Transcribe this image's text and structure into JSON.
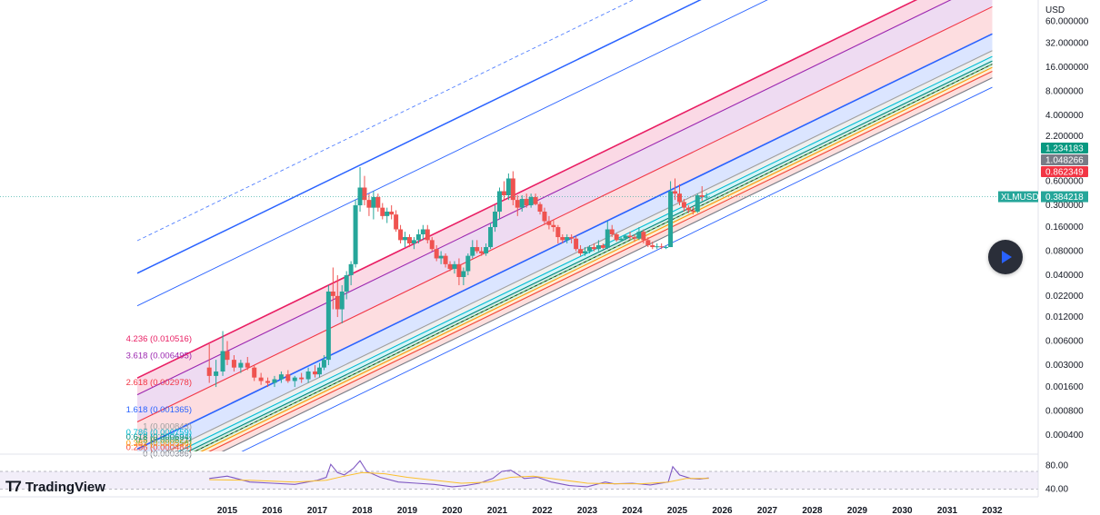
{
  "colors": {
    "up": "#26a69a",
    "down": "#ef5350",
    "rsi": "#7e57c2",
    "rsi_ma": "#fbc02d",
    "fib": {
      "0": "#787b86",
      "0.236": "#f44336",
      "0.382": "#ff9800",
      "0.5": "#4caf50",
      "0.618": "#00897b",
      "0.786": "#00bcd4",
      "1": "#9e9e9e",
      "1.618": "#2962ff",
      "2.618": "#f23645",
      "3.618": "#9c27b0",
      "4.236": "#e91e63"
    }
  },
  "chart_data": [
    {
      "type": "candlestick",
      "symbol": "XLMUSD",
      "currency": "USD",
      "y_scale": "log",
      "ylim": [
        0.00025,
        100
      ],
      "xlim": [
        2014.2,
        2032.6
      ],
      "y_ticks": [
        "60.000000",
        "32.000000",
        "16.000000",
        "8.000000",
        "4.000000",
        "2.200000",
        "0.600000",
        "0.300000",
        "0.160000",
        "0.080000",
        "0.040000",
        "0.022000",
        "0.012000",
        "0.006000",
        "0.003000",
        "0.001600",
        "0.000800",
        "0.000400"
      ],
      "x_ticks": [
        "2015",
        "2016",
        "2017",
        "2018",
        "2019",
        "2020",
        "2021",
        "2022",
        "2023",
        "2024",
        "2025",
        "2026",
        "2027",
        "2028",
        "2029",
        "2030",
        "2031",
        "2032"
      ],
      "price_tags": [
        {
          "label": "1.234183",
          "color": "#089981"
        },
        {
          "label": "1.048266",
          "color": "#787b86"
        },
        {
          "label": "0.862349",
          "color": "#f23645"
        }
      ],
      "last_price": {
        "symbol": "XLMUSD",
        "value": "0.384218"
      },
      "candles": [
        {
          "t": 2014.6,
          "o": 0.0028,
          "h": 0.0055,
          "l": 0.0018,
          "c": 0.0022
        },
        {
          "t": 2014.75,
          "o": 0.0022,
          "h": 0.0035,
          "l": 0.0016,
          "c": 0.0025
        },
        {
          "t": 2014.9,
          "o": 0.0025,
          "h": 0.008,
          "l": 0.0022,
          "c": 0.0045
        },
        {
          "t": 2015.0,
          "o": 0.0045,
          "h": 0.006,
          "l": 0.003,
          "c": 0.0035
        },
        {
          "t": 2015.15,
          "o": 0.0035,
          "h": 0.004,
          "l": 0.0025,
          "c": 0.0028
        },
        {
          "t": 2015.3,
          "o": 0.0028,
          "h": 0.0035,
          "l": 0.0024,
          "c": 0.0032
        },
        {
          "t": 2015.45,
          "o": 0.0032,
          "h": 0.0038,
          "l": 0.0026,
          "c": 0.0028
        },
        {
          "t": 2015.6,
          "o": 0.0028,
          "h": 0.003,
          "l": 0.0019,
          "c": 0.0021
        },
        {
          "t": 2015.75,
          "o": 0.0021,
          "h": 0.0024,
          "l": 0.0017,
          "c": 0.0019
        },
        {
          "t": 2015.9,
          "o": 0.0019,
          "h": 0.0021,
          "l": 0.0016,
          "c": 0.0018
        },
        {
          "t": 2016.05,
          "o": 0.0018,
          "h": 0.0022,
          "l": 0.0016,
          "c": 0.002
        },
        {
          "t": 2016.2,
          "o": 0.002,
          "h": 0.0025,
          "l": 0.0018,
          "c": 0.0023
        },
        {
          "t": 2016.35,
          "o": 0.0023,
          "h": 0.0026,
          "l": 0.0018,
          "c": 0.0019
        },
        {
          "t": 2016.5,
          "o": 0.0019,
          "h": 0.0022,
          "l": 0.0016,
          "c": 0.0021
        },
        {
          "t": 2016.65,
          "o": 0.0021,
          "h": 0.0024,
          "l": 0.0018,
          "c": 0.002
        },
        {
          "t": 2016.8,
          "o": 0.002,
          "h": 0.0028,
          "l": 0.0018,
          "c": 0.0025
        },
        {
          "t": 2016.95,
          "o": 0.0025,
          "h": 0.003,
          "l": 0.0021,
          "c": 0.0023
        },
        {
          "t": 2017.05,
          "o": 0.0023,
          "h": 0.0032,
          "l": 0.0021,
          "c": 0.0028
        },
        {
          "t": 2017.15,
          "o": 0.0028,
          "h": 0.004,
          "l": 0.0026,
          "c": 0.0035
        },
        {
          "t": 2017.25,
          "o": 0.0035,
          "h": 0.03,
          "l": 0.003,
          "c": 0.025
        },
        {
          "t": 2017.35,
          "o": 0.025,
          "h": 0.05,
          "l": 0.015,
          "c": 0.022
        },
        {
          "t": 2017.45,
          "o": 0.022,
          "h": 0.04,
          "l": 0.012,
          "c": 0.015
        },
        {
          "t": 2017.55,
          "o": 0.015,
          "h": 0.03,
          "l": 0.01,
          "c": 0.025
        },
        {
          "t": 2017.65,
          "o": 0.025,
          "h": 0.045,
          "l": 0.02,
          "c": 0.04
        },
        {
          "t": 2017.75,
          "o": 0.04,
          "h": 0.06,
          "l": 0.03,
          "c": 0.055
        },
        {
          "t": 2017.85,
          "o": 0.055,
          "h": 0.35,
          "l": 0.05,
          "c": 0.3
        },
        {
          "t": 2017.95,
          "o": 0.3,
          "h": 0.9,
          "l": 0.25,
          "c": 0.5
        },
        {
          "t": 2018.05,
          "o": 0.5,
          "h": 0.7,
          "l": 0.3,
          "c": 0.35
        },
        {
          "t": 2018.15,
          "o": 0.35,
          "h": 0.42,
          "l": 0.22,
          "c": 0.28
        },
        {
          "t": 2018.25,
          "o": 0.28,
          "h": 0.45,
          "l": 0.2,
          "c": 0.38
        },
        {
          "t": 2018.35,
          "o": 0.38,
          "h": 0.42,
          "l": 0.25,
          "c": 0.28
        },
        {
          "t": 2018.45,
          "o": 0.28,
          "h": 0.32,
          "l": 0.2,
          "c": 0.22
        },
        {
          "t": 2018.55,
          "o": 0.22,
          "h": 0.28,
          "l": 0.18,
          "c": 0.25
        },
        {
          "t": 2018.65,
          "o": 0.25,
          "h": 0.3,
          "l": 0.2,
          "c": 0.23
        },
        {
          "t": 2018.75,
          "o": 0.23,
          "h": 0.26,
          "l": 0.14,
          "c": 0.15
        },
        {
          "t": 2018.85,
          "o": 0.15,
          "h": 0.17,
          "l": 0.1,
          "c": 0.11
        },
        {
          "t": 2018.95,
          "o": 0.11,
          "h": 0.14,
          "l": 0.09,
          "c": 0.12
        },
        {
          "t": 2019.05,
          "o": 0.12,
          "h": 0.13,
          "l": 0.09,
          "c": 0.1
        },
        {
          "t": 2019.15,
          "o": 0.1,
          "h": 0.12,
          "l": 0.085,
          "c": 0.11
        },
        {
          "t": 2019.25,
          "o": 0.11,
          "h": 0.15,
          "l": 0.1,
          "c": 0.13
        },
        {
          "t": 2019.35,
          "o": 0.13,
          "h": 0.17,
          "l": 0.11,
          "c": 0.15
        },
        {
          "t": 2019.45,
          "o": 0.15,
          "h": 0.17,
          "l": 0.1,
          "c": 0.11
        },
        {
          "t": 2019.55,
          "o": 0.11,
          "h": 0.12,
          "l": 0.08,
          "c": 0.085
        },
        {
          "t": 2019.65,
          "o": 0.085,
          "h": 0.095,
          "l": 0.06,
          "c": 0.065
        },
        {
          "t": 2019.75,
          "o": 0.065,
          "h": 0.08,
          "l": 0.055,
          "c": 0.07
        },
        {
          "t": 2019.85,
          "o": 0.07,
          "h": 0.075,
          "l": 0.05,
          "c": 0.055
        },
        {
          "t": 2019.95,
          "o": 0.055,
          "h": 0.06,
          "l": 0.045,
          "c": 0.048
        },
        {
          "t": 2020.05,
          "o": 0.048,
          "h": 0.06,
          "l": 0.042,
          "c": 0.055
        },
        {
          "t": 2020.15,
          "o": 0.055,
          "h": 0.065,
          "l": 0.03,
          "c": 0.038
        },
        {
          "t": 2020.25,
          "o": 0.038,
          "h": 0.05,
          "l": 0.03,
          "c": 0.045
        },
        {
          "t": 2020.35,
          "o": 0.045,
          "h": 0.075,
          "l": 0.04,
          "c": 0.07
        },
        {
          "t": 2020.45,
          "o": 0.07,
          "h": 0.11,
          "l": 0.065,
          "c": 0.09
        },
        {
          "t": 2020.55,
          "o": 0.09,
          "h": 0.11,
          "l": 0.075,
          "c": 0.08
        },
        {
          "t": 2020.65,
          "o": 0.08,
          "h": 0.09,
          "l": 0.07,
          "c": 0.075
        },
        {
          "t": 2020.75,
          "o": 0.075,
          "h": 0.1,
          "l": 0.07,
          "c": 0.09
        },
        {
          "t": 2020.85,
          "o": 0.09,
          "h": 0.18,
          "l": 0.085,
          "c": 0.16
        },
        {
          "t": 2020.95,
          "o": 0.16,
          "h": 0.3,
          "l": 0.14,
          "c": 0.25
        },
        {
          "t": 2021.05,
          "o": 0.25,
          "h": 0.5,
          "l": 0.2,
          "c": 0.45
        },
        {
          "t": 2021.15,
          "o": 0.45,
          "h": 0.6,
          "l": 0.35,
          "c": 0.4
        },
        {
          "t": 2021.25,
          "o": 0.4,
          "h": 0.75,
          "l": 0.35,
          "c": 0.65
        },
        {
          "t": 2021.35,
          "o": 0.65,
          "h": 0.8,
          "l": 0.3,
          "c": 0.35
        },
        {
          "t": 2021.45,
          "o": 0.35,
          "h": 0.4,
          "l": 0.22,
          "c": 0.28
        },
        {
          "t": 2021.55,
          "o": 0.28,
          "h": 0.4,
          "l": 0.25,
          "c": 0.36
        },
        {
          "t": 2021.65,
          "o": 0.36,
          "h": 0.42,
          "l": 0.28,
          "c": 0.3
        },
        {
          "t": 2021.75,
          "o": 0.3,
          "h": 0.42,
          "l": 0.28,
          "c": 0.38
        },
        {
          "t": 2021.85,
          "o": 0.38,
          "h": 0.42,
          "l": 0.3,
          "c": 0.31
        },
        {
          "t": 2021.95,
          "o": 0.31,
          "h": 0.33,
          "l": 0.23,
          "c": 0.25
        },
        {
          "t": 2022.05,
          "o": 0.25,
          "h": 0.28,
          "l": 0.17,
          "c": 0.19
        },
        {
          "t": 2022.15,
          "o": 0.19,
          "h": 0.22,
          "l": 0.15,
          "c": 0.17
        },
        {
          "t": 2022.25,
          "o": 0.17,
          "h": 0.2,
          "l": 0.14,
          "c": 0.16
        },
        {
          "t": 2022.35,
          "o": 0.16,
          "h": 0.17,
          "l": 0.1,
          "c": 0.12
        },
        {
          "t": 2022.45,
          "o": 0.12,
          "h": 0.13,
          "l": 0.1,
          "c": 0.11
        },
        {
          "t": 2022.55,
          "o": 0.11,
          "h": 0.13,
          "l": 0.1,
          "c": 0.12
        },
        {
          "t": 2022.65,
          "o": 0.12,
          "h": 0.13,
          "l": 0.1,
          "c": 0.115
        },
        {
          "t": 2022.75,
          "o": 0.115,
          "h": 0.125,
          "l": 0.08,
          "c": 0.085
        },
        {
          "t": 2022.85,
          "o": 0.085,
          "h": 0.095,
          "l": 0.07,
          "c": 0.075
        },
        {
          "t": 2022.95,
          "o": 0.075,
          "h": 0.09,
          "l": 0.07,
          "c": 0.08
        },
        {
          "t": 2023.05,
          "o": 0.08,
          "h": 0.095,
          "l": 0.075,
          "c": 0.09
        },
        {
          "t": 2023.15,
          "o": 0.09,
          "h": 0.1,
          "l": 0.08,
          "c": 0.085
        },
        {
          "t": 2023.25,
          "o": 0.085,
          "h": 0.11,
          "l": 0.08,
          "c": 0.095
        },
        {
          "t": 2023.35,
          "o": 0.095,
          "h": 0.1,
          "l": 0.085,
          "c": 0.088
        },
        {
          "t": 2023.45,
          "o": 0.088,
          "h": 0.19,
          "l": 0.085,
          "c": 0.15
        },
        {
          "t": 2023.55,
          "o": 0.15,
          "h": 0.17,
          "l": 0.12,
          "c": 0.13
        },
        {
          "t": 2023.65,
          "o": 0.13,
          "h": 0.135,
          "l": 0.105,
          "c": 0.11
        },
        {
          "t": 2023.75,
          "o": 0.11,
          "h": 0.12,
          "l": 0.105,
          "c": 0.115
        },
        {
          "t": 2023.85,
          "o": 0.115,
          "h": 0.13,
          "l": 0.11,
          "c": 0.125
        },
        {
          "t": 2023.95,
          "o": 0.125,
          "h": 0.14,
          "l": 0.11,
          "c": 0.12
        },
        {
          "t": 2024.05,
          "o": 0.12,
          "h": 0.13,
          "l": 0.105,
          "c": 0.115
        },
        {
          "t": 2024.15,
          "o": 0.115,
          "h": 0.16,
          "l": 0.11,
          "c": 0.14
        },
        {
          "t": 2024.25,
          "o": 0.14,
          "h": 0.15,
          "l": 0.1,
          "c": 0.11
        },
        {
          "t": 2024.35,
          "o": 0.11,
          "h": 0.12,
          "l": 0.09,
          "c": 0.095
        },
        {
          "t": 2024.45,
          "o": 0.095,
          "h": 0.105,
          "l": 0.085,
          "c": 0.09
        },
        {
          "t": 2024.55,
          "o": 0.09,
          "h": 0.1,
          "l": 0.085,
          "c": 0.092
        },
        {
          "t": 2024.65,
          "o": 0.092,
          "h": 0.1,
          "l": 0.085,
          "c": 0.09
        },
        {
          "t": 2024.75,
          "o": 0.09,
          "h": 0.095,
          "l": 0.085,
          "c": 0.09
        },
        {
          "t": 2024.85,
          "o": 0.09,
          "h": 0.6,
          "l": 0.09,
          "c": 0.45
        },
        {
          "t": 2024.95,
          "o": 0.45,
          "h": 0.65,
          "l": 0.35,
          "c": 0.42
        },
        {
          "t": 2025.05,
          "o": 0.42,
          "h": 0.55,
          "l": 0.3,
          "c": 0.33
        },
        {
          "t": 2025.15,
          "o": 0.33,
          "h": 0.36,
          "l": 0.25,
          "c": 0.28
        },
        {
          "t": 2025.25,
          "o": 0.28,
          "h": 0.3,
          "l": 0.24,
          "c": 0.26
        },
        {
          "t": 2025.35,
          "o": 0.26,
          "h": 0.29,
          "l": 0.23,
          "c": 0.25
        },
        {
          "t": 2025.45,
          "o": 0.25,
          "h": 0.42,
          "l": 0.24,
          "c": 0.4
        },
        {
          "t": 2025.55,
          "o": 0.4,
          "h": 0.52,
          "l": 0.34,
          "c": 0.38
        },
        {
          "t": 2025.65,
          "o": 0.38,
          "h": 0.43,
          "l": 0.35,
          "c": 0.3842
        }
      ],
      "fib_channel": {
        "base_line": [
          {
            "t": 2014.0,
            "v": 0.000142
          },
          {
            "t": 2030.5,
            "v": 4.6
          }
        ],
        "levels": [
          {
            "level": "0",
            "label": "0 (0.000386)"
          },
          {
            "level": "0.236",
            "label": "0.236 (0.000484)"
          },
          {
            "level": "0.382",
            "label": "0.382 (0.000556)"
          },
          {
            "level": "0.5",
            "label": "0.5 (0.000621)"
          },
          {
            "level": "0.618",
            "label": "0.618 (0.000694)"
          },
          {
            "level": "0.786",
            "label": "0.786 (0.000759)"
          },
          {
            "level": "1",
            "label": "1 (0.000843)"
          },
          {
            "level": "1.618",
            "label": "1.618 (0.001365)"
          },
          {
            "level": "2.618",
            "label": "2.618 (0.002978)"
          },
          {
            "level": "3.618",
            "label": "3.618 (0.006495)"
          },
          {
            "level": "4.236",
            "label": "4.236 (0.010516)"
          }
        ]
      }
    },
    {
      "type": "line",
      "panel": "RSI",
      "ylim": [
        30,
        90
      ],
      "y_ticks": [
        "80.00",
        "40.00"
      ],
      "band": [
        40,
        70
      ],
      "series": [
        {
          "key": "rsi",
          "x": [
            2014.6,
            2015.0,
            2015.5,
            2016.0,
            2016.5,
            2017.0,
            2017.2,
            2017.3,
            2017.45,
            2017.6,
            2017.8,
            2017.95,
            2018.1,
            2018.4,
            2018.8,
            2019.2,
            2019.6,
            2020.0,
            2020.3,
            2020.6,
            2020.9,
            2021.1,
            2021.3,
            2021.6,
            2021.9,
            2022.2,
            2022.6,
            2023.0,
            2023.4,
            2023.6,
            2024.0,
            2024.4,
            2024.8,
            2024.9,
            2025.05,
            2025.3,
            2025.5,
            2025.7
          ],
          "values": [
            58,
            62,
            52,
            50,
            48,
            55,
            60,
            82,
            68,
            64,
            75,
            88,
            70,
            60,
            52,
            50,
            48,
            44,
            46,
            50,
            58,
            70,
            72,
            58,
            60,
            52,
            46,
            44,
            52,
            49,
            50,
            47,
            52,
            78,
            64,
            58,
            57,
            59
          ]
        },
        {
          "key": "rsi_ma",
          "x": [
            2014.6,
            2015.5,
            2016.5,
            2017.2,
            2017.6,
            2018.0,
            2018.5,
            2019.0,
            2019.6,
            2020.2,
            2020.8,
            2021.3,
            2021.8,
            2022.4,
            2023.0,
            2023.6,
            2024.2,
            2024.8,
            2025.2,
            2025.7
          ],
          "values": [
            56,
            55,
            52,
            55,
            62,
            68,
            66,
            60,
            55,
            50,
            52,
            60,
            62,
            56,
            50,
            49,
            49,
            52,
            58,
            58
          ]
        }
      ]
    }
  ],
  "footer": {
    "brand": "TradingView"
  }
}
